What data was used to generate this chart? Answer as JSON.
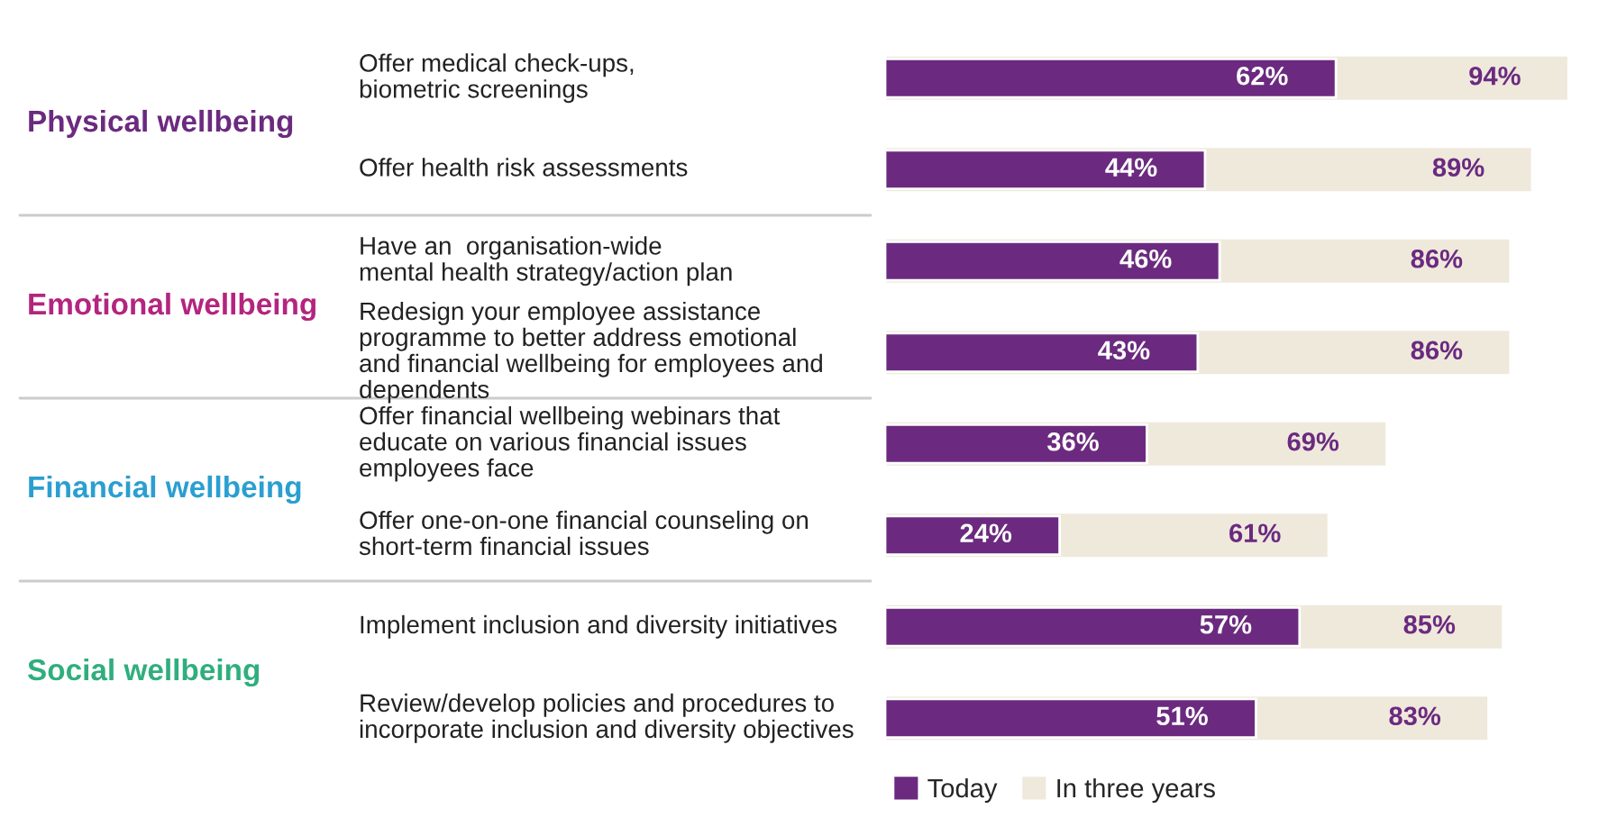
{
  "chart_data": {
    "type": "bar",
    "orientation": "horizontal",
    "stacked": false,
    "categories": [
      "Offer medical check-ups,\nbiometric screenings",
      "Offer health risk assessments",
      "Have an  organisation-wide\nmental health strategy/action plan",
      "Redesign your employee assistance\nprogramme to better address emotional\nand financial wellbeing for employees and\ndependents",
      "Offer financial wellbeing webinars that\neducate on various financial issues\nemployees face",
      "Offer one-on-one financial counseling on\nshort-term financial issues",
      "Implement inclusion and diversity initiatives",
      "Review/develop policies and procedures to\nincorporate inclusion and diversity objectives"
    ],
    "series": [
      {
        "name": "In three years",
        "color": "#efe9dc",
        "values": [
          94,
          89,
          86,
          86,
          69,
          61,
          85,
          83
        ],
        "value_labels": [
          "94%",
          "89%",
          "86%",
          "86%",
          "69%",
          "61%",
          "85%",
          "83%"
        ]
      },
      {
        "name": "Today",
        "color": "#6b2a7f",
        "values": [
          62,
          44,
          46,
          43,
          36,
          24,
          57,
          51
        ],
        "value_labels": [
          "62%",
          "44%",
          "46%",
          "43%",
          "36%",
          "24%",
          "57%",
          "51%"
        ]
      }
    ],
    "annotations": [
      "Physical wellbeing",
      "Emotional wellbeing",
      "Financial wellbeing",
      "Social wellbeing"
    ],
    "legend": "bottom"
  }
}
